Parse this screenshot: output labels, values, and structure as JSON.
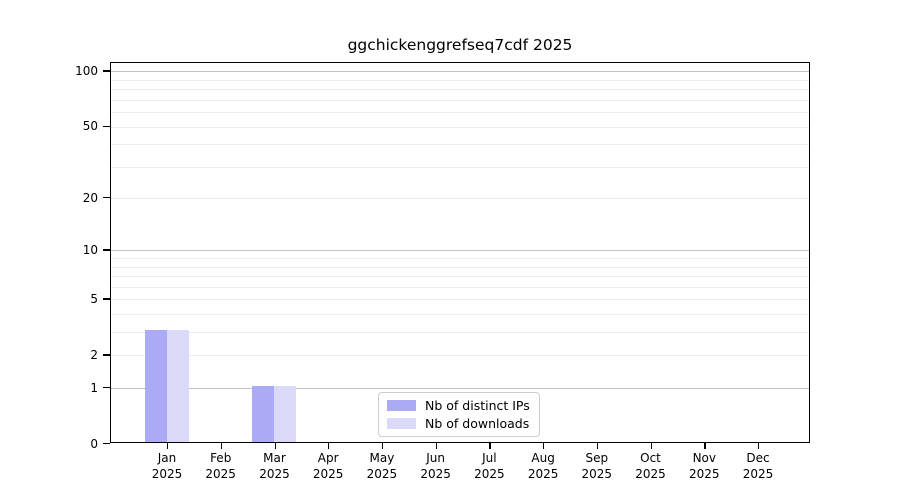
{
  "title": "ggchickenggrefseq7cdf 2025",
  "chart_data": {
    "type": "bar",
    "title": "ggchickenggrefseq7cdf 2025",
    "categories": [
      "Jan",
      "Feb",
      "Mar",
      "Apr",
      "May",
      "Jun",
      "Jul",
      "Aug",
      "Sep",
      "Oct",
      "Nov",
      "Dec"
    ],
    "year_label": "2025",
    "series": [
      {
        "name": "Nb of distinct IPs",
        "color": "#aaaaf5",
        "values": [
          3,
          0,
          1,
          0,
          0,
          0,
          0,
          0,
          0,
          0,
          0,
          0
        ]
      },
      {
        "name": "Nb of downloads",
        "color": "#dadaf8",
        "values": [
          3,
          0,
          1,
          0,
          0,
          0,
          0,
          0,
          0,
          0,
          0,
          0
        ]
      }
    ],
    "xlabel": "",
    "ylabel": "",
    "yscale": "log1p",
    "ylim": [
      0,
      111
    ],
    "yticks": [
      0,
      1,
      2,
      5,
      10,
      20,
      50,
      100
    ],
    "grid_major_values": [
      1,
      10,
      100
    ],
    "grid_minor_values": [
      2,
      3,
      4,
      5,
      6,
      7,
      8,
      9,
      20,
      30,
      40,
      50,
      60,
      70,
      80,
      90
    ],
    "grid": true,
    "legend_position": "lower center"
  },
  "colors": {
    "grid_major": "#c2c2c2",
    "grid_minor": "#ededed",
    "axis": "#000000",
    "legend_border": "#cccccc",
    "background": "#ffffff"
  }
}
